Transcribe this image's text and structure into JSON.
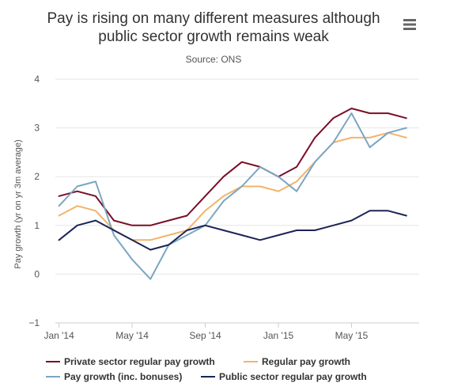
{
  "title_line1": "Pay is rising on many different measures although",
  "title_line2": "public sector growth remains weak",
  "subtitle": "Source: ONS",
  "menu_icon": "hamburger-menu-icon",
  "colors": {
    "private": "#7a0e27",
    "regular": "#f2b36b",
    "total": "#7aa6c2",
    "public": "#1b2556",
    "grid": "#e6e6e6",
    "axis_text": "#555555"
  },
  "chart_data": {
    "type": "line",
    "title": "Pay is rising on many different measures although public sector growth remains weak",
    "subtitle": "Source: ONS",
    "xlabel": "",
    "ylabel": "Pay growth (yr on yr 3m average)",
    "ylim": [
      -1,
      4
    ],
    "yticks": [
      "−1",
      "0",
      "1",
      "2",
      "3",
      "4"
    ],
    "xticks": [
      {
        "label": "Jan '14",
        "index": 0
      },
      {
        "label": "May '14",
        "index": 4
      },
      {
        "label": "Sep '14",
        "index": 8
      },
      {
        "label": "Jan '15",
        "index": 12
      },
      {
        "label": "May '15",
        "index": 16
      }
    ],
    "x": [
      "Jan 2014",
      "Feb 2014",
      "Mar 2014",
      "Apr 2014",
      "May 2014",
      "Jun 2014",
      "Jul 2014",
      "Aug 2014",
      "Sep 2014",
      "Oct 2014",
      "Nov 2014",
      "Dec 2014",
      "Jan 2015",
      "Feb 2015",
      "Mar 2015",
      "Apr 2015",
      "May 2015",
      "Jun 2015",
      "Jul 2015",
      "Aug 2015"
    ],
    "grid": "horizontal",
    "legend_position": "bottom",
    "series": [
      {
        "name": "Private sector regular pay growth",
        "color": "#7a0e27",
        "values": [
          1.6,
          1.7,
          1.6,
          1.1,
          1.0,
          1.0,
          1.1,
          1.2,
          1.6,
          2.0,
          2.3,
          2.2,
          2.0,
          2.2,
          2.8,
          3.2,
          3.4,
          3.3,
          3.3,
          3.2
        ]
      },
      {
        "name": "Regular pay growth",
        "color": "#f2b36b",
        "values": [
          1.2,
          1.4,
          1.3,
          0.9,
          0.7,
          0.7,
          0.8,
          0.9,
          1.3,
          1.6,
          1.8,
          1.8,
          1.7,
          1.9,
          2.3,
          2.7,
          2.8,
          2.8,
          2.9,
          2.8
        ]
      },
      {
        "name": "Pay growth (inc. bonuses)",
        "color": "#7aa6c2",
        "values": [
          1.4,
          1.8,
          1.9,
          0.8,
          0.3,
          -0.1,
          0.6,
          0.8,
          1.0,
          1.5,
          1.8,
          2.2,
          2.0,
          1.7,
          2.3,
          2.7,
          3.3,
          2.6,
          2.9,
          3.0
        ]
      },
      {
        "name": "Public sector regular pay growth",
        "color": "#1b2556",
        "values": [
          0.7,
          1.0,
          1.1,
          0.9,
          0.7,
          0.5,
          0.6,
          0.9,
          1.0,
          0.9,
          0.8,
          0.7,
          0.8,
          0.9,
          0.9,
          1.0,
          1.1,
          1.3,
          1.3,
          1.2
        ]
      }
    ]
  }
}
